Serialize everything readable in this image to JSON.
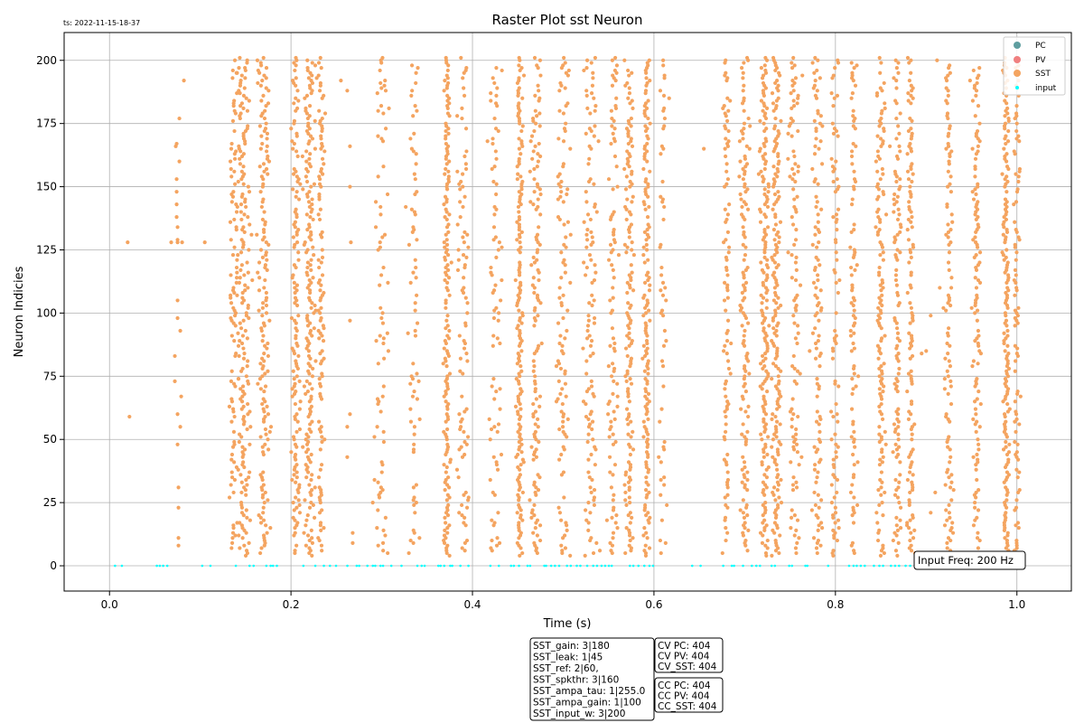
{
  "timestamp": "ts: 2022-11-15-18-37",
  "annotations": {
    "input_freq": "Input Freq: 200 Hz",
    "params": [
      "SST_gain: 3|180",
      "SST_leak: 1|45",
      "SST_ref: 2|60,",
      "SST_spkthr: 3|160",
      "SST_ampa_tau: 1|255.0",
      "SST_ampa_gain: 1|100",
      "SST_input_w: 3|200"
    ],
    "cv": [
      "CV PC: 404",
      "CV PV: 404",
      "CV_SST: 404"
    ],
    "cc": [
      "CC PC: 404",
      "CC PV: 404",
      "CC_SST: 404"
    ]
  },
  "legend_entries": [
    {
      "label": "PC",
      "color": "#5f9ea0"
    },
    {
      "label": "PV",
      "color": "#f08080"
    },
    {
      "label": "SST",
      "color": "#f4a460"
    },
    {
      "label": "input",
      "color": "#00ffff"
    }
  ],
  "chart_data": {
    "type": "scatter",
    "title": "Raster Plot sst Neuron",
    "xlabel": "Time (s)",
    "ylabel": "Neuron Indicies",
    "xlim": [
      -0.05,
      1.06
    ],
    "ylim": [
      -10,
      211
    ],
    "xticks": [
      0.0,
      0.2,
      0.4,
      0.6,
      0.8,
      1.0
    ],
    "xtick_labels": [
      "0.0",
      "0.2",
      "0.4",
      "0.6",
      "0.8",
      "1.0"
    ],
    "yticks": [
      0,
      25,
      50,
      75,
      100,
      125,
      150,
      175,
      200
    ],
    "ytick_labels": [
      "0",
      "25",
      "50",
      "75",
      "100",
      "125",
      "150",
      "175",
      "200"
    ],
    "grid": true,
    "legend_position": "top-right",
    "series": [
      {
        "name": "SST",
        "color": "#f4a460",
        "neuron_range": [
          4,
          201
        ],
        "bursts": [
          {
            "t": 0.137,
            "w": 0.008,
            "d": 0.45
          },
          {
            "t": 0.148,
            "w": 0.012,
            "d": 0.9
          },
          {
            "t": 0.17,
            "w": 0.01,
            "d": 0.8
          },
          {
            "t": 0.205,
            "w": 0.008,
            "d": 0.7
          },
          {
            "t": 0.22,
            "w": 0.01,
            "d": 0.9
          },
          {
            "t": 0.233,
            "w": 0.006,
            "d": 0.6
          },
          {
            "t": 0.3,
            "w": 0.012,
            "d": 0.4
          },
          {
            "t": 0.335,
            "w": 0.01,
            "d": 0.35
          },
          {
            "t": 0.372,
            "w": 0.006,
            "d": 0.8
          },
          {
            "t": 0.39,
            "w": 0.01,
            "d": 0.45
          },
          {
            "t": 0.425,
            "w": 0.012,
            "d": 0.4
          },
          {
            "t": 0.452,
            "w": 0.006,
            "d": 0.9
          },
          {
            "t": 0.47,
            "w": 0.01,
            "d": 0.6
          },
          {
            "t": 0.5,
            "w": 0.012,
            "d": 0.55
          },
          {
            "t": 0.53,
            "w": 0.012,
            "d": 0.5
          },
          {
            "t": 0.555,
            "w": 0.01,
            "d": 0.5
          },
          {
            "t": 0.573,
            "w": 0.008,
            "d": 0.7
          },
          {
            "t": 0.592,
            "w": 0.006,
            "d": 0.8
          },
          {
            "t": 0.61,
            "w": 0.008,
            "d": 0.35
          },
          {
            "t": 0.68,
            "w": 0.006,
            "d": 0.4
          },
          {
            "t": 0.7,
            "w": 0.008,
            "d": 0.7
          },
          {
            "t": 0.722,
            "w": 0.008,
            "d": 0.9
          },
          {
            "t": 0.735,
            "w": 0.008,
            "d": 0.9
          },
          {
            "t": 0.755,
            "w": 0.01,
            "d": 0.6
          },
          {
            "t": 0.78,
            "w": 0.01,
            "d": 0.55
          },
          {
            "t": 0.8,
            "w": 0.008,
            "d": 0.5
          },
          {
            "t": 0.82,
            "w": 0.006,
            "d": 0.45
          },
          {
            "t": 0.85,
            "w": 0.008,
            "d": 0.6
          },
          {
            "t": 0.868,
            "w": 0.006,
            "d": 0.55
          },
          {
            "t": 0.883,
            "w": 0.006,
            "d": 0.6
          },
          {
            "t": 0.925,
            "w": 0.008,
            "d": 0.55
          },
          {
            "t": 0.955,
            "w": 0.008,
            "d": 0.6
          },
          {
            "t": 0.988,
            "w": 0.006,
            "d": 0.9
          },
          {
            "t": 1.0,
            "w": 0.006,
            "d": 0.5
          }
        ],
        "sparse_points": [
          [
            0.02,
            128
          ],
          [
            0.022,
            59
          ],
          [
            0.068,
            128
          ],
          [
            0.072,
            83
          ],
          [
            0.072,
            73
          ],
          [
            0.073,
            166
          ],
          [
            0.074,
            167
          ],
          [
            0.074,
            153
          ],
          [
            0.074,
            148
          ],
          [
            0.074,
            143
          ],
          [
            0.074,
            138
          ],
          [
            0.075,
            134
          ],
          [
            0.075,
            129
          ],
          [
            0.075,
            128
          ],
          [
            0.075,
            105
          ],
          [
            0.075,
            98
          ],
          [
            0.075,
            60
          ],
          [
            0.075,
            48
          ],
          [
            0.076,
            31
          ],
          [
            0.076,
            23
          ],
          [
            0.076,
            11
          ],
          [
            0.076,
            8
          ],
          [
            0.077,
            177
          ],
          [
            0.077,
            160
          ],
          [
            0.078,
            93
          ],
          [
            0.078,
            55
          ],
          [
            0.079,
            67
          ],
          [
            0.08,
            128
          ],
          [
            0.082,
            192
          ],
          [
            0.105,
            128
          ],
          [
            0.255,
            192
          ],
          [
            0.262,
            188
          ],
          [
            0.262,
            55
          ],
          [
            0.262,
            43
          ],
          [
            0.265,
            166
          ],
          [
            0.265,
            150
          ],
          [
            0.265,
            97
          ],
          [
            0.265,
            60
          ],
          [
            0.266,
            128
          ],
          [
            0.268,
            9
          ],
          [
            0.268,
            13
          ],
          [
            0.655,
            165
          ],
          [
            0.86,
            166
          ],
          [
            0.895,
            84
          ],
          [
            0.9,
            85
          ],
          [
            0.905,
            21
          ],
          [
            0.905,
            99
          ],
          [
            0.91,
            29
          ],
          [
            0.912,
            200
          ],
          [
            0.915,
            110
          ]
        ]
      },
      {
        "name": "input",
        "color": "#00ffff",
        "neuron_index": 0,
        "intervals": [
          [
            0.0,
            0.02
          ],
          [
            0.05,
            0.08
          ],
          [
            0.1,
            0.11
          ],
          [
            0.13,
            0.6
          ],
          [
            0.64,
            0.65
          ],
          [
            0.67,
            0.9
          ]
        ]
      }
    ]
  }
}
